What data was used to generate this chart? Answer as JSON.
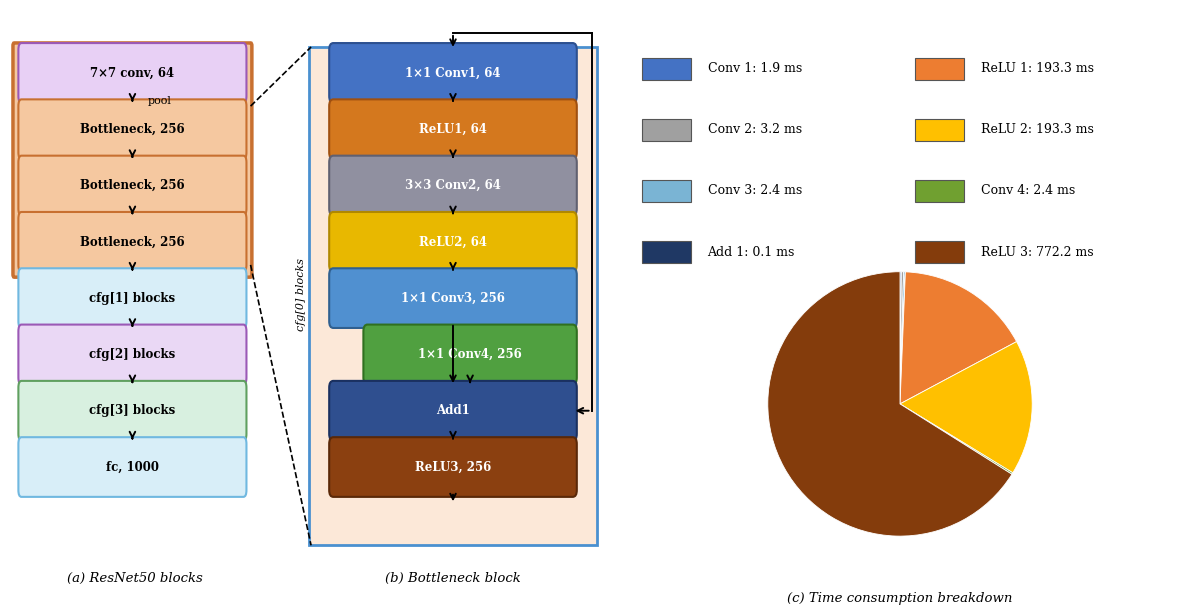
{
  "fig_width": 12.0,
  "fig_height": 6.12,
  "bg": "#ffffff",
  "resnet_blocks": [
    {
      "label": "7×7 conv, 64",
      "fc": "#e8d0f5",
      "ec": "#9b59b6",
      "tc": "#000000"
    },
    {
      "label": "Bottleneck, 256",
      "fc": "#f5c8a0",
      "ec": "#c87030",
      "tc": "#000000"
    },
    {
      "label": "Bottleneck, 256",
      "fc": "#f5c8a0",
      "ec": "#c87030",
      "tc": "#000000"
    },
    {
      "label": "Bottleneck, 256",
      "fc": "#f5c8a0",
      "ec": "#c87030",
      "tc": "#000000"
    },
    {
      "label": "cfg[1] blocks",
      "fc": "#d8eef8",
      "ec": "#70b8e0",
      "tc": "#000000"
    },
    {
      "label": "cfg[2] blocks",
      "fc": "#ead8f5",
      "ec": "#9b59b6",
      "tc": "#000000"
    },
    {
      "label": "cfg[3] blocks",
      "fc": "#d8f0e0",
      "ec": "#60a060",
      "tc": "#000000"
    },
    {
      "label": "fc, 1000",
      "fc": "#d8eef8",
      "ec": "#70b8e0",
      "tc": "#000000"
    }
  ],
  "resnet_caption": "(a) ResNet50 blocks",
  "resnet_group_fc": "#f5c8a0",
  "resnet_group_ec": "#c87030",
  "bn_blocks": [
    {
      "label": "1×1 Conv1, 64",
      "fc": "#4472c4",
      "ec": "#2c5090",
      "tc": "#ffffff"
    },
    {
      "label": "ReLU1, 64",
      "fc": "#d4781e",
      "ec": "#a05010",
      "tc": "#ffffff"
    },
    {
      "label": "3×3 Conv2, 64",
      "fc": "#9090a0",
      "ec": "#606070",
      "tc": "#ffffff"
    },
    {
      "label": "ReLU2, 64",
      "fc": "#e8b800",
      "ec": "#b08800",
      "tc": "#ffffff"
    },
    {
      "label": "1×1 Conv3, 256",
      "fc": "#5090d0",
      "ec": "#306090",
      "tc": "#ffffff"
    },
    {
      "label": "1×1 Conv4, 256",
      "fc": "#50a040",
      "ec": "#307020",
      "tc": "#ffffff"
    },
    {
      "label": "Add1",
      "fc": "#2f4f8f",
      "ec": "#1a3060",
      "tc": "#ffffff"
    },
    {
      "label": "ReLU3, 256",
      "fc": "#8b4010",
      "ec": "#5a2808",
      "tc": "#ffffff"
    }
  ],
  "bn_caption": "(b) Bottleneck block",
  "bn_bg": "#fce8d8",
  "bn_border": "#4a90d0",
  "cfg0_label": "cfg[0] blocks",
  "pie_labels": [
    "Conv 1: 1.9 ms",
    "Conv 2: 3.2 ms",
    "Conv 3: 2.4 ms",
    "Add 1: 0.1 ms",
    "ReLU 1: 193.3 ms",
    "ReLU 2: 193.3 ms",
    "Conv 4: 2.4 ms",
    "ReLU 3: 772.2 ms"
  ],
  "pie_values": [
    1.9,
    3.2,
    2.4,
    0.1,
    193.3,
    193.3,
    2.4,
    772.2
  ],
  "pie_colors": [
    "#4472c4",
    "#a0a0a0",
    "#7ab4d4",
    "#1f3864",
    "#ed7d31",
    "#ffc000",
    "#70a030",
    "#843c0c"
  ],
  "pie_caption": "(c) Time consumption breakdown",
  "pie_startangle": 90
}
